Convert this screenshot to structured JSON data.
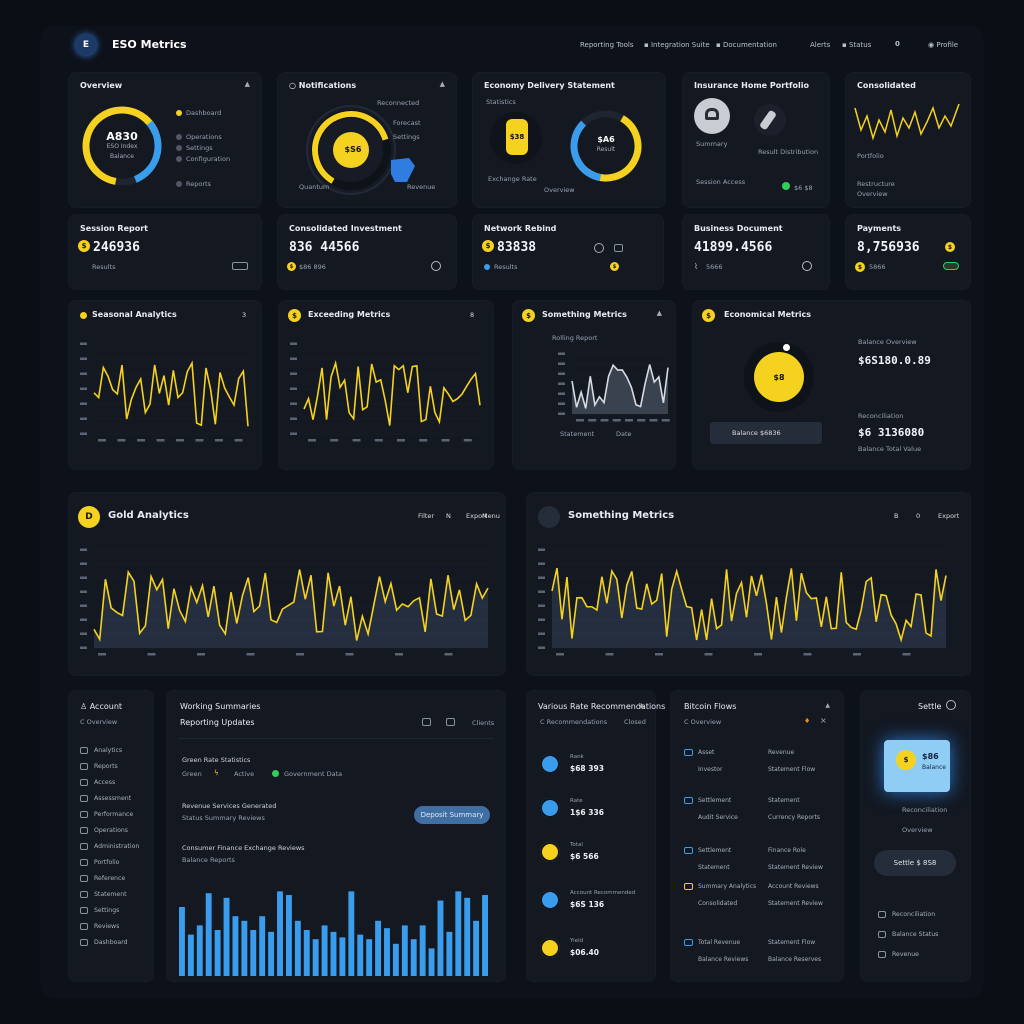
{
  "header": {
    "logo_letter": "E",
    "app_title": "ESO Metrics",
    "nav": [
      "Reporting Tools",
      "Integration Suite",
      "Documentation"
    ],
    "right": [
      "Alerts",
      "Status",
      "0",
      "Profile"
    ]
  },
  "row1": {
    "c1": {
      "title": "Overview",
      "center_value": "A830",
      "center_sub": "ESO Index",
      "center_sub2": "Balance",
      "legend": [
        "Dashboard",
        "Operations",
        "Settings",
        "Configuration",
        "Reports"
      ]
    },
    "c2": {
      "title": "Notifications",
      "center_value": "$S6",
      "labels": [
        "Reconnected",
        "Forecast",
        "Settings",
        "Quantum",
        "Revenue"
      ]
    },
    "c3": {
      "title": "Economy Delivery Statement",
      "left_label": "Statistics",
      "coin_label": "$38",
      "ring_value": "$A6",
      "ring_sub": "Result",
      "bottom": [
        "Exchange Rate",
        "Overview"
      ]
    },
    "c4": {
      "title": "Insurance Home Portfolio",
      "bottom_left": "Summary",
      "bottom_right": "Result Distribution",
      "footer_left": "Session Access",
      "footer_right": "$6 $8"
    },
    "c5": {
      "title": "Consolidated",
      "foot1": "Portfolio",
      "foot2": "Restructure",
      "foot3": "Overview"
    }
  },
  "row2": [
    {
      "title": "Session Report",
      "value": "246936",
      "sub": "Results"
    },
    {
      "title": "Consolidated Investment",
      "value": "836 44566",
      "sub": "$86 896"
    },
    {
      "title": "Network Rebind",
      "value": "83838",
      "sub": "Results"
    },
    {
      "title": "Business Document",
      "value": "41899.4566",
      "sub": "5666"
    },
    {
      "title": "Payments",
      "value": "8,756936",
      "sub": "5866"
    }
  ],
  "row3": {
    "c1": {
      "title": "Seasonal Analytics",
      "badge": "3"
    },
    "c2": {
      "title": "Exceeding Metrics",
      "badge": "8"
    },
    "c3": {
      "title": "Something Metrics",
      "sub": "Rolling Report",
      "bottom": [
        "Statement",
        "Date"
      ]
    },
    "c4": {
      "title": "Economical Metrics",
      "knob": "$8",
      "v1_label": "Balance Overview",
      "v1": "$6S180.0.89",
      "v2_label": "Reconciliation",
      "v2": "$6 3136080",
      "v2_sub": "Balance Total Value",
      "button": "Balance $6836"
    }
  },
  "row4": {
    "left": {
      "badge": "D",
      "title": "Gold Analytics",
      "controls": [
        "Filter",
        "N",
        "Export",
        "Menu"
      ]
    },
    "right": {
      "title": "Something Metrics",
      "controls": [
        "B",
        "0",
        "Export"
      ]
    }
  },
  "row5": {
    "c1": {
      "title": "Account",
      "sub": "Overview",
      "items": [
        "Analytics",
        "Reports",
        "Access",
        "Assessment",
        "Performance",
        "Operations",
        "Administration",
        "Portfolio",
        "Reference",
        "Statement",
        "Settings",
        "Reviews",
        "Dashboard"
      ]
    },
    "c2": {
      "title": "Working Summaries",
      "sub": "Reporting Updates",
      "actions": [
        "Clients"
      ],
      "section1": "Green Rate Statistics",
      "s1_items": [
        "Green",
        "Active",
        "Government Data"
      ],
      "section2": "Revenue Services Generated",
      "s2_sub": "Status Summary Reviews",
      "button": "Deposit Summary",
      "section3": "Consumer Finance Exchange Reviews",
      "s3_sub": "Balance Reports",
      "bars": [
        0.75,
        0.45,
        0.55,
        0.9,
        0.5,
        0.85,
        0.65,
        0.6,
        0.5,
        0.65,
        0.48,
        0.92,
        0.88,
        0.6,
        0.5,
        0.4,
        0.55,
        0.48,
        0.42,
        0.92,
        0.45,
        0.4,
        0.6,
        0.52,
        0.35,
        0.55,
        0.4,
        0.55,
        0.3,
        0.82,
        0.48,
        0.92,
        0.85,
        0.6,
        0.88
      ]
    },
    "c3": {
      "title": "Various Rate Recommendations",
      "sub": "Recommendations",
      "sub_right": "Closed",
      "rows": [
        {
          "label": "Rank",
          "value": "$68 393"
        },
        {
          "label": "Rate",
          "value": "1$6 336"
        },
        {
          "label": "Total",
          "value": "$6 566"
        },
        {
          "label": "Account Recommended",
          "value": "$6S 136"
        },
        {
          "label": "Yield",
          "value": "$06.40"
        }
      ]
    },
    "c4": {
      "title": "Bitcoin Flows",
      "sub": "Overview",
      "rows": [
        [
          "Asset",
          "Revenue",
          "Investor",
          "Statement Flow"
        ],
        [
          "Settlement",
          "Statement",
          "Audit Service",
          "Currency Reports"
        ],
        [
          "Settlement",
          "Finance Role",
          "Statement",
          "Statement Review"
        ],
        [
          "Summary Analytics",
          "Account Reviews",
          "Consolidated",
          "Statement Review"
        ],
        [
          "Total Revenue",
          "Statement Flow",
          "Balance Reviews",
          "Balance Reserves"
        ]
      ]
    },
    "c5": {
      "title": "Settle",
      "tile_value": "$86",
      "tile_sub": "Balance",
      "l1": "Reconciliation",
      "l2": "Overview",
      "button": "Settle $ 8S8",
      "items": [
        "Reconciliation",
        "Balance Status",
        "Revenue"
      ]
    }
  },
  "colors": {
    "yellow": "#f5d21f",
    "blue": "#3a9cec",
    "bg": "#0a0e15",
    "card": "#131821"
  }
}
